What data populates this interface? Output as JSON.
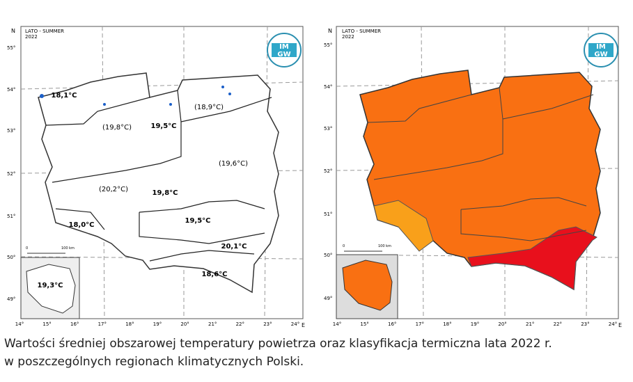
{
  "left_map": {
    "title": "LATO - SUMMER",
    "year": "2022",
    "logo_top": "IM",
    "logo_bottom": "GW",
    "north": "N",
    "east": "E",
    "lat_labels": [
      "55°",
      "54°",
      "53°",
      "52°",
      "51°",
      "50°",
      "49°"
    ],
    "lon_labels": [
      "14°",
      "15°",
      "16°",
      "17°",
      "18°",
      "19°",
      "20°",
      "21°",
      "22°",
      "23°",
      "24°"
    ],
    "scale_start": "0",
    "scale_end": "100 km",
    "regions": [
      "18,1°C",
      "(19,8°C)",
      "19,5°C",
      "(18,9°C)",
      "(19,6°C)",
      "(20,2°C)",
      "19,8°C",
      "18,0°C",
      "19,5°C",
      "20,1°C",
      "18,6°C"
    ],
    "inset_value": "19,3°C"
  },
  "right_map": {
    "title": "LATO - SUMMER",
    "year": "2022",
    "logo_top": "IM",
    "logo_bottom": "GW",
    "north": "N",
    "east": "E",
    "lat_labels": [
      "55°",
      "54°",
      "53°",
      "52°",
      "51°",
      "50°",
      "49°"
    ],
    "lon_labels": [
      "14°",
      "15°",
      "16°",
      "17°",
      "18°",
      "19°",
      "20°",
      "21°",
      "22°",
      "23°",
      "24°"
    ],
    "scale_start": "0",
    "scale_end": "100 km"
  },
  "caption": [
    "Wartości średniej obszarowej temperatury powietrza oraz klasyfikacja termiczna lata 2022 r.",
    "w poszczególnych regionach klimatycznych Polski."
  ]
}
